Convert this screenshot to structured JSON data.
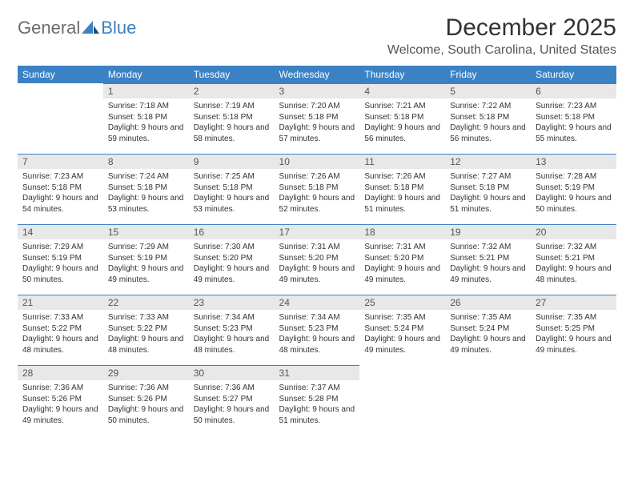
{
  "logo": {
    "text1": "General",
    "text2": "Blue"
  },
  "title": "December 2025",
  "location": "Welcome, South Carolina, United States",
  "colors": {
    "header_bg": "#3b82c4",
    "header_text": "#ffffff",
    "daynum_bg": "#e8e8e8",
    "daynum_border": "#3b82c4",
    "body_text": "#333333",
    "logo_gray": "#6b6b6b",
    "logo_blue": "#3b82c4"
  },
  "weekdays": [
    "Sunday",
    "Monday",
    "Tuesday",
    "Wednesday",
    "Thursday",
    "Friday",
    "Saturday"
  ],
  "weeks": [
    [
      {
        "n": "",
        "empty": true
      },
      {
        "n": "1",
        "sr": "7:18 AM",
        "ss": "5:18 PM",
        "dl": "9 hours and 59 minutes."
      },
      {
        "n": "2",
        "sr": "7:19 AM",
        "ss": "5:18 PM",
        "dl": "9 hours and 58 minutes."
      },
      {
        "n": "3",
        "sr": "7:20 AM",
        "ss": "5:18 PM",
        "dl": "9 hours and 57 minutes."
      },
      {
        "n": "4",
        "sr": "7:21 AM",
        "ss": "5:18 PM",
        "dl": "9 hours and 56 minutes."
      },
      {
        "n": "5",
        "sr": "7:22 AM",
        "ss": "5:18 PM",
        "dl": "9 hours and 56 minutes."
      },
      {
        "n": "6",
        "sr": "7:23 AM",
        "ss": "5:18 PM",
        "dl": "9 hours and 55 minutes."
      }
    ],
    [
      {
        "n": "7",
        "sr": "7:23 AM",
        "ss": "5:18 PM",
        "dl": "9 hours and 54 minutes."
      },
      {
        "n": "8",
        "sr": "7:24 AM",
        "ss": "5:18 PM",
        "dl": "9 hours and 53 minutes."
      },
      {
        "n": "9",
        "sr": "7:25 AM",
        "ss": "5:18 PM",
        "dl": "9 hours and 53 minutes."
      },
      {
        "n": "10",
        "sr": "7:26 AM",
        "ss": "5:18 PM",
        "dl": "9 hours and 52 minutes."
      },
      {
        "n": "11",
        "sr": "7:26 AM",
        "ss": "5:18 PM",
        "dl": "9 hours and 51 minutes."
      },
      {
        "n": "12",
        "sr": "7:27 AM",
        "ss": "5:18 PM",
        "dl": "9 hours and 51 minutes."
      },
      {
        "n": "13",
        "sr": "7:28 AM",
        "ss": "5:19 PM",
        "dl": "9 hours and 50 minutes."
      }
    ],
    [
      {
        "n": "14",
        "sr": "7:29 AM",
        "ss": "5:19 PM",
        "dl": "9 hours and 50 minutes."
      },
      {
        "n": "15",
        "sr": "7:29 AM",
        "ss": "5:19 PM",
        "dl": "9 hours and 49 minutes."
      },
      {
        "n": "16",
        "sr": "7:30 AM",
        "ss": "5:20 PM",
        "dl": "9 hours and 49 minutes."
      },
      {
        "n": "17",
        "sr": "7:31 AM",
        "ss": "5:20 PM",
        "dl": "9 hours and 49 minutes."
      },
      {
        "n": "18",
        "sr": "7:31 AM",
        "ss": "5:20 PM",
        "dl": "9 hours and 49 minutes."
      },
      {
        "n": "19",
        "sr": "7:32 AM",
        "ss": "5:21 PM",
        "dl": "9 hours and 49 minutes."
      },
      {
        "n": "20",
        "sr": "7:32 AM",
        "ss": "5:21 PM",
        "dl": "9 hours and 48 minutes."
      }
    ],
    [
      {
        "n": "21",
        "sr": "7:33 AM",
        "ss": "5:22 PM",
        "dl": "9 hours and 48 minutes."
      },
      {
        "n": "22",
        "sr": "7:33 AM",
        "ss": "5:22 PM",
        "dl": "9 hours and 48 minutes."
      },
      {
        "n": "23",
        "sr": "7:34 AM",
        "ss": "5:23 PM",
        "dl": "9 hours and 48 minutes."
      },
      {
        "n": "24",
        "sr": "7:34 AM",
        "ss": "5:23 PM",
        "dl": "9 hours and 48 minutes."
      },
      {
        "n": "25",
        "sr": "7:35 AM",
        "ss": "5:24 PM",
        "dl": "9 hours and 49 minutes."
      },
      {
        "n": "26",
        "sr": "7:35 AM",
        "ss": "5:24 PM",
        "dl": "9 hours and 49 minutes."
      },
      {
        "n": "27",
        "sr": "7:35 AM",
        "ss": "5:25 PM",
        "dl": "9 hours and 49 minutes."
      }
    ],
    [
      {
        "n": "28",
        "sr": "7:36 AM",
        "ss": "5:26 PM",
        "dl": "9 hours and 49 minutes."
      },
      {
        "n": "29",
        "sr": "7:36 AM",
        "ss": "5:26 PM",
        "dl": "9 hours and 50 minutes."
      },
      {
        "n": "30",
        "sr": "7:36 AM",
        "ss": "5:27 PM",
        "dl": "9 hours and 50 minutes."
      },
      {
        "n": "31",
        "sr": "7:37 AM",
        "ss": "5:28 PM",
        "dl": "9 hours and 51 minutes."
      },
      {
        "n": "",
        "empty": true
      },
      {
        "n": "",
        "empty": true
      },
      {
        "n": "",
        "empty": true
      }
    ]
  ],
  "labels": {
    "sunrise": "Sunrise:",
    "sunset": "Sunset:",
    "daylight": "Daylight:"
  }
}
